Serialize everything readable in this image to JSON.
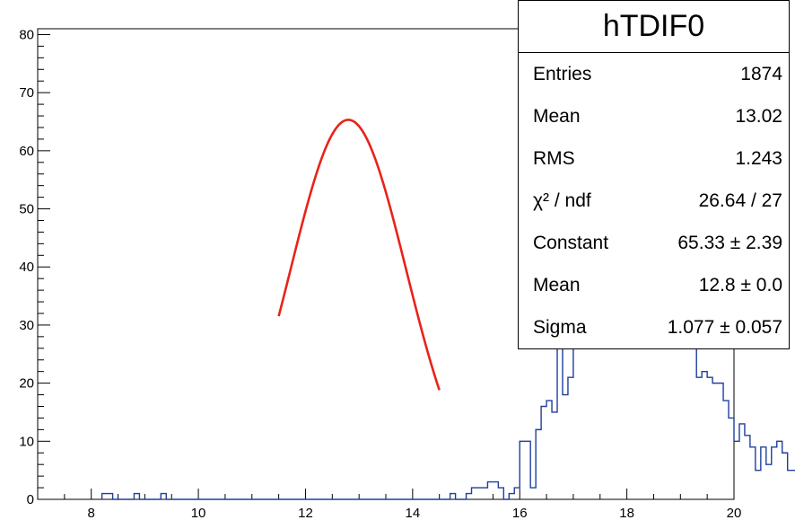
{
  "chart_data": {
    "type": "bar",
    "title": "hTDIF0",
    "xlabel": "",
    "ylabel": "",
    "xlim": [
      7,
      20
    ],
    "ylim": [
      0,
      81
    ],
    "x_ticks": [
      8,
      10,
      12,
      14,
      16,
      18,
      20
    ],
    "y_ticks": [
      0,
      10,
      20,
      30,
      40,
      50,
      60,
      70,
      80
    ],
    "bin_width": 0.1,
    "bin_start": 8.2,
    "series": [
      {
        "style": "step histogram",
        "color": "#1f3f9c",
        "values": [
          1,
          1,
          0,
          0,
          0,
          0,
          1,
          0,
          0,
          0,
          0,
          1,
          0,
          0,
          0,
          0,
          0,
          0,
          0,
          0,
          0,
          0,
          0,
          0,
          0,
          0,
          0,
          0,
          0,
          0,
          0,
          0,
          0,
          0,
          0,
          0,
          0,
          0,
          0,
          0,
          0,
          0,
          0,
          0,
          0,
          0,
          0,
          0,
          0,
          0,
          0,
          0,
          0,
          0,
          0,
          0,
          0,
          0,
          0,
          0,
          0,
          0,
          0,
          0,
          0,
          1,
          0,
          0,
          1,
          2,
          2,
          2,
          3,
          3,
          2,
          0,
          1,
          2,
          10,
          10,
          2,
          12,
          16,
          17,
          15,
          28,
          18,
          21,
          26,
          32,
          45,
          50,
          62,
          60,
          56,
          59,
          57,
          74,
          72,
          61,
          79,
          56,
          65,
          48,
          51,
          42,
          40,
          34,
          36,
          28,
          26,
          21,
          22,
          21,
          20,
          20,
          17,
          14,
          10,
          13,
          11,
          9,
          5,
          9,
          6,
          9,
          10,
          8,
          5,
          5,
          4,
          3,
          3,
          4,
          3,
          2,
          5,
          5,
          5,
          3,
          0,
          2,
          2,
          1,
          1,
          1,
          1,
          1,
          1,
          1,
          1,
          1,
          1,
          1,
          1,
          1,
          1,
          1,
          1,
          1,
          1,
          1,
          1,
          1,
          1,
          1,
          1,
          1,
          0,
          1,
          1,
          0,
          0,
          1,
          0,
          0,
          1,
          0,
          1,
          0,
          1,
          0,
          0,
          0,
          0,
          0,
          0,
          0,
          0,
          0,
          0,
          0,
          0,
          0,
          0,
          0,
          0,
          0,
          0,
          0,
          0,
          0,
          0,
          0,
          0,
          0,
          0,
          0,
          0,
          0,
          1,
          1
        ]
      },
      {
        "style": "fit curve (gaussian)",
        "color": "#e8231a",
        "constant": 65.33,
        "mean": 12.8,
        "sigma": 1.077,
        "x_range": [
          11.5,
          14.5
        ]
      }
    ],
    "stats_box": {
      "title": "hTDIF0",
      "rows": [
        {
          "label": "Entries",
          "value": "1874"
        },
        {
          "label": "Mean",
          "value": "13.02"
        },
        {
          "label": "RMS",
          "value": "1.243"
        },
        {
          "label": "χ² / ndf",
          "value": "26.64 / 27"
        },
        {
          "label": "Constant",
          "value": "65.33 ± 2.39"
        },
        {
          "label": "Mean",
          "value": "12.8 ± 0.0"
        },
        {
          "label": "Sigma",
          "value": "1.077 ± 0.057"
        }
      ]
    }
  }
}
